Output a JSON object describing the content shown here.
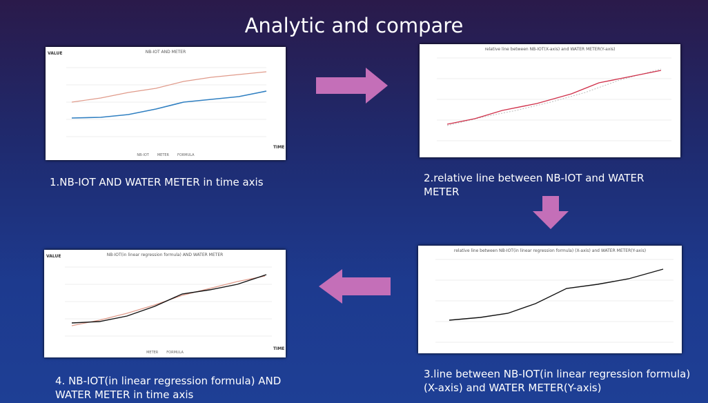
{
  "title": "Analytic and compare",
  "panels": [
    {
      "chart_title": "NB-IOT AND METER",
      "y_label": "VALUE",
      "x_label": "TIME",
      "legend": [
        "NB-IOT",
        "METER",
        "FORMULA"
      ],
      "caption": "1.NB-IOT AND WATER METER  in time axis"
    },
    {
      "chart_title": "relative line between NB-IOT(X-axis) and WATER METER(Y-axis)",
      "caption": "2.relative line between NB-IOT and WATER METER"
    },
    {
      "chart_title": "relative line between NB-IOT(in linear regression formula) (X-axis) and WATER METER(Y-axis)",
      "caption": "3.line between NB-IOT(in linear regression formula) (X-axis) and WATER METER(Y-axis)"
    },
    {
      "chart_title": "NB-IOT(in linear regression formula) AND WATER METER",
      "y_label": "VALUE",
      "x_label": "TIME",
      "legend": [
        "METER",
        "FORMULA"
      ],
      "caption": "4. NB-IOT(in linear regression formula) AND WATER METER in time axis"
    }
  ]
}
